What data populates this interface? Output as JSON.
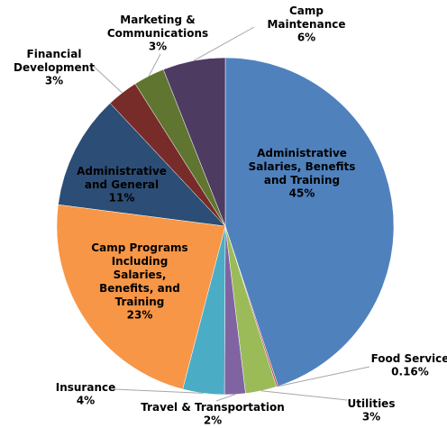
{
  "chart_data": {
    "type": "pie",
    "categories": [
      "Administrative\nSalaries, Benefits\nand Training",
      "Food Service",
      "Utilities",
      "Travel  & Transportation",
      "Insurance",
      "Camp Programs\nIncluding\nSalaries,\nBenefits, and\nTraining",
      "Administrative\nand General",
      "Financial\nDevelopment",
      "Marketing &\nCommunications",
      "Camp\nMaintenance"
    ],
    "values": [
      45,
      0.16,
      3,
      2,
      4,
      23,
      11,
      3,
      3,
      6
    ],
    "value_labels": [
      "45%",
      "0.16%",
      "3%",
      "2%",
      "4%",
      "23%",
      "11%",
      "3%",
      "3%",
      "6%"
    ],
    "colors": [
      "#4f81bd",
      "#c0504d",
      "#9bbb59",
      "#8064a2",
      "#4bacc6",
      "#f79646",
      "#2c4d75",
      "#772c2a",
      "#5f7530",
      "#4d3b62"
    ]
  }
}
